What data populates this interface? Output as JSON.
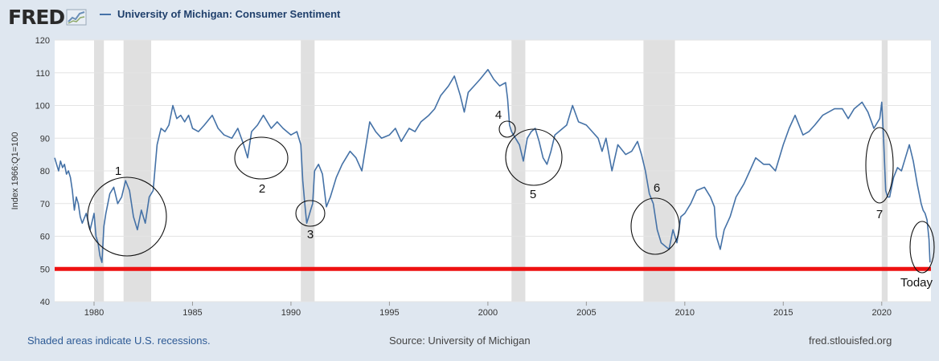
{
  "header": {
    "logo_text": "FRED",
    "legend_title": "University of Michigan: Consumer Sentiment",
    "series_color": "#4572a7"
  },
  "footer": {
    "recessions_note": "Shaded areas indicate U.S. recessions.",
    "source": "Source: University of Michigan",
    "site": "fred.stlouisfed.org"
  },
  "chart_data": {
    "type": "line",
    "title": "University of Michigan: Consumer Sentiment",
    "ylabel": "Index 1966:Q1=100",
    "xlabel": "",
    "xlim": [
      1978.0,
      2022.5
    ],
    "ylim": [
      40,
      120
    ],
    "yticks": [
      40,
      50,
      60,
      70,
      80,
      90,
      100,
      110,
      120
    ],
    "xticks": [
      1980,
      1985,
      1990,
      1995,
      2000,
      2005,
      2010,
      2015,
      2020
    ],
    "grid": true,
    "recessions": [
      [
        1980.0,
        1980.5
      ],
      [
        1981.5,
        1982.9
      ],
      [
        1990.5,
        1991.2
      ],
      [
        2001.2,
        2001.9
      ],
      [
        2007.9,
        2009.5
      ],
      [
        2020.0,
        2020.3
      ]
    ],
    "threshold_line": {
      "y": 50,
      "color": "#ee1111"
    },
    "series": [
      {
        "color": "#4572a7",
        "x": [
          1978.0,
          1978.1,
          1978.2,
          1978.3,
          1978.4,
          1978.5,
          1978.6,
          1978.7,
          1978.8,
          1978.9,
          1979.0,
          1979.1,
          1979.2,
          1979.3,
          1979.4,
          1979.6,
          1979.8,
          1980.0,
          1980.1,
          1980.2,
          1980.3,
          1980.4,
          1980.5,
          1980.6,
          1980.8,
          1981.0,
          1981.2,
          1981.4,
          1981.6,
          1981.8,
          1982.0,
          1982.2,
          1982.4,
          1982.6,
          1982.8,
          1983.0,
          1983.2,
          1983.4,
          1983.6,
          1983.8,
          1984.0,
          1984.2,
          1984.4,
          1984.6,
          1984.8,
          1985.0,
          1985.3,
          1985.6,
          1986.0,
          1986.3,
          1986.6,
          1987.0,
          1987.3,
          1987.6,
          1987.8,
          1988.0,
          1988.3,
          1988.6,
          1989.0,
          1989.3,
          1989.6,
          1990.0,
          1990.3,
          1990.5,
          1990.6,
          1990.7,
          1990.8,
          1990.9,
          1991.0,
          1991.1,
          1991.2,
          1991.4,
          1991.6,
          1991.8,
          1992.0,
          1992.3,
          1992.6,
          1993.0,
          1993.3,
          1993.6,
          1994.0,
          1994.3,
          1994.6,
          1995.0,
          1995.3,
          1995.6,
          1996.0,
          1996.3,
          1996.6,
          1997.0,
          1997.3,
          1997.6,
          1998.0,
          1998.3,
          1998.6,
          1998.8,
          1999.0,
          1999.3,
          1999.6,
          2000.0,
          2000.3,
          2000.6,
          2000.9,
          2001.0,
          2001.1,
          2001.2,
          2001.4,
          2001.6,
          2001.8,
          2002.0,
          2002.2,
          2002.4,
          2002.6,
          2002.8,
          2003.0,
          2003.2,
          2003.4,
          2003.6,
          2004.0,
          2004.3,
          2004.6,
          2005.0,
          2005.3,
          2005.6,
          2005.8,
          2006.0,
          2006.3,
          2006.6,
          2007.0,
          2007.3,
          2007.6,
          2007.8,
          2008.0,
          2008.2,
          2008.4,
          2008.6,
          2008.8,
          2009.0,
          2009.2,
          2009.4,
          2009.6,
          2009.8,
          2010.0,
          2010.3,
          2010.6,
          2011.0,
          2011.3,
          2011.5,
          2011.6,
          2011.8,
          2012.0,
          2012.3,
          2012.6,
          2013.0,
          2013.3,
          2013.6,
          2014.0,
          2014.3,
          2014.6,
          2015.0,
          2015.3,
          2015.6,
          2016.0,
          2016.3,
          2016.6,
          2017.0,
          2017.3,
          2017.6,
          2018.0,
          2018.3,
          2018.6,
          2019.0,
          2019.3,
          2019.6,
          2019.9,
          2020.0,
          2020.1,
          2020.2,
          2020.3,
          2020.4,
          2020.6,
          2020.8,
          2021.0,
          2021.2,
          2021.4,
          2021.6,
          2021.8,
          2022.0,
          2022.1,
          2022.2,
          2022.3,
          2022.4,
          2022.45
        ],
        "values": [
          84,
          82,
          80,
          83,
          81,
          82,
          79,
          80,
          78,
          74,
          68,
          72,
          70,
          66,
          64,
          67,
          62,
          67,
          60,
          58,
          54,
          52,
          63,
          67,
          73,
          75,
          70,
          72,
          77,
          74,
          66,
          62,
          68,
          64,
          72,
          74,
          88,
          93,
          92,
          94,
          100,
          96,
          97,
          95,
          97,
          93,
          92,
          94,
          97,
          93,
          91,
          90,
          93,
          88,
          84,
          92,
          94,
          97,
          93,
          95,
          93,
          91,
          92,
          88,
          77,
          70,
          64,
          66,
          68,
          70,
          80,
          82,
          79,
          69,
          72,
          78,
          82,
          86,
          84,
          80,
          95,
          92,
          90,
          91,
          93,
          89,
          93,
          92,
          95,
          97,
          99,
          103,
          106,
          109,
          103,
          98,
          104,
          106,
          108,
          111,
          108,
          106,
          107,
          102,
          94,
          92,
          90,
          88,
          83,
          90,
          92,
          93,
          89,
          84,
          82,
          86,
          91,
          92,
          94,
          100,
          95,
          94,
          92,
          90,
          86,
          90,
          80,
          88,
          85,
          86,
          89,
          85,
          80,
          73,
          70,
          62,
          58,
          57,
          56,
          62,
          58,
          66,
          67,
          70,
          74,
          75,
          72,
          69,
          60,
          56,
          62,
          66,
          72,
          76,
          80,
          84,
          82,
          82,
          80,
          88,
          93,
          97,
          91,
          92,
          94,
          97,
          98,
          99,
          99,
          96,
          99,
          101,
          98,
          93,
          96,
          101,
          89,
          74,
          72,
          72,
          78,
          81,
          80,
          84,
          88,
          83,
          76,
          70,
          68,
          67,
          65,
          59,
          52
        ]
      }
    ],
    "annotations": [
      {
        "text": "1",
        "x": 1981.0,
        "y": 77
      },
      {
        "text": "2",
        "x": 1988.3,
        "y": 79
      },
      {
        "text": "3",
        "x": 1990.7,
        "y": 61
      },
      {
        "text": "4",
        "x": 2000.7,
        "y": 93
      },
      {
        "text": "5",
        "x": 2002.3,
        "y": 72
      },
      {
        "text": "6",
        "x": 2008.7,
        "y": 73
      },
      {
        "text": "7",
        "x": 2020.2,
        "y": 66
      },
      {
        "text": "Today",
        "x": 2022.5,
        "y": 45
      }
    ]
  }
}
